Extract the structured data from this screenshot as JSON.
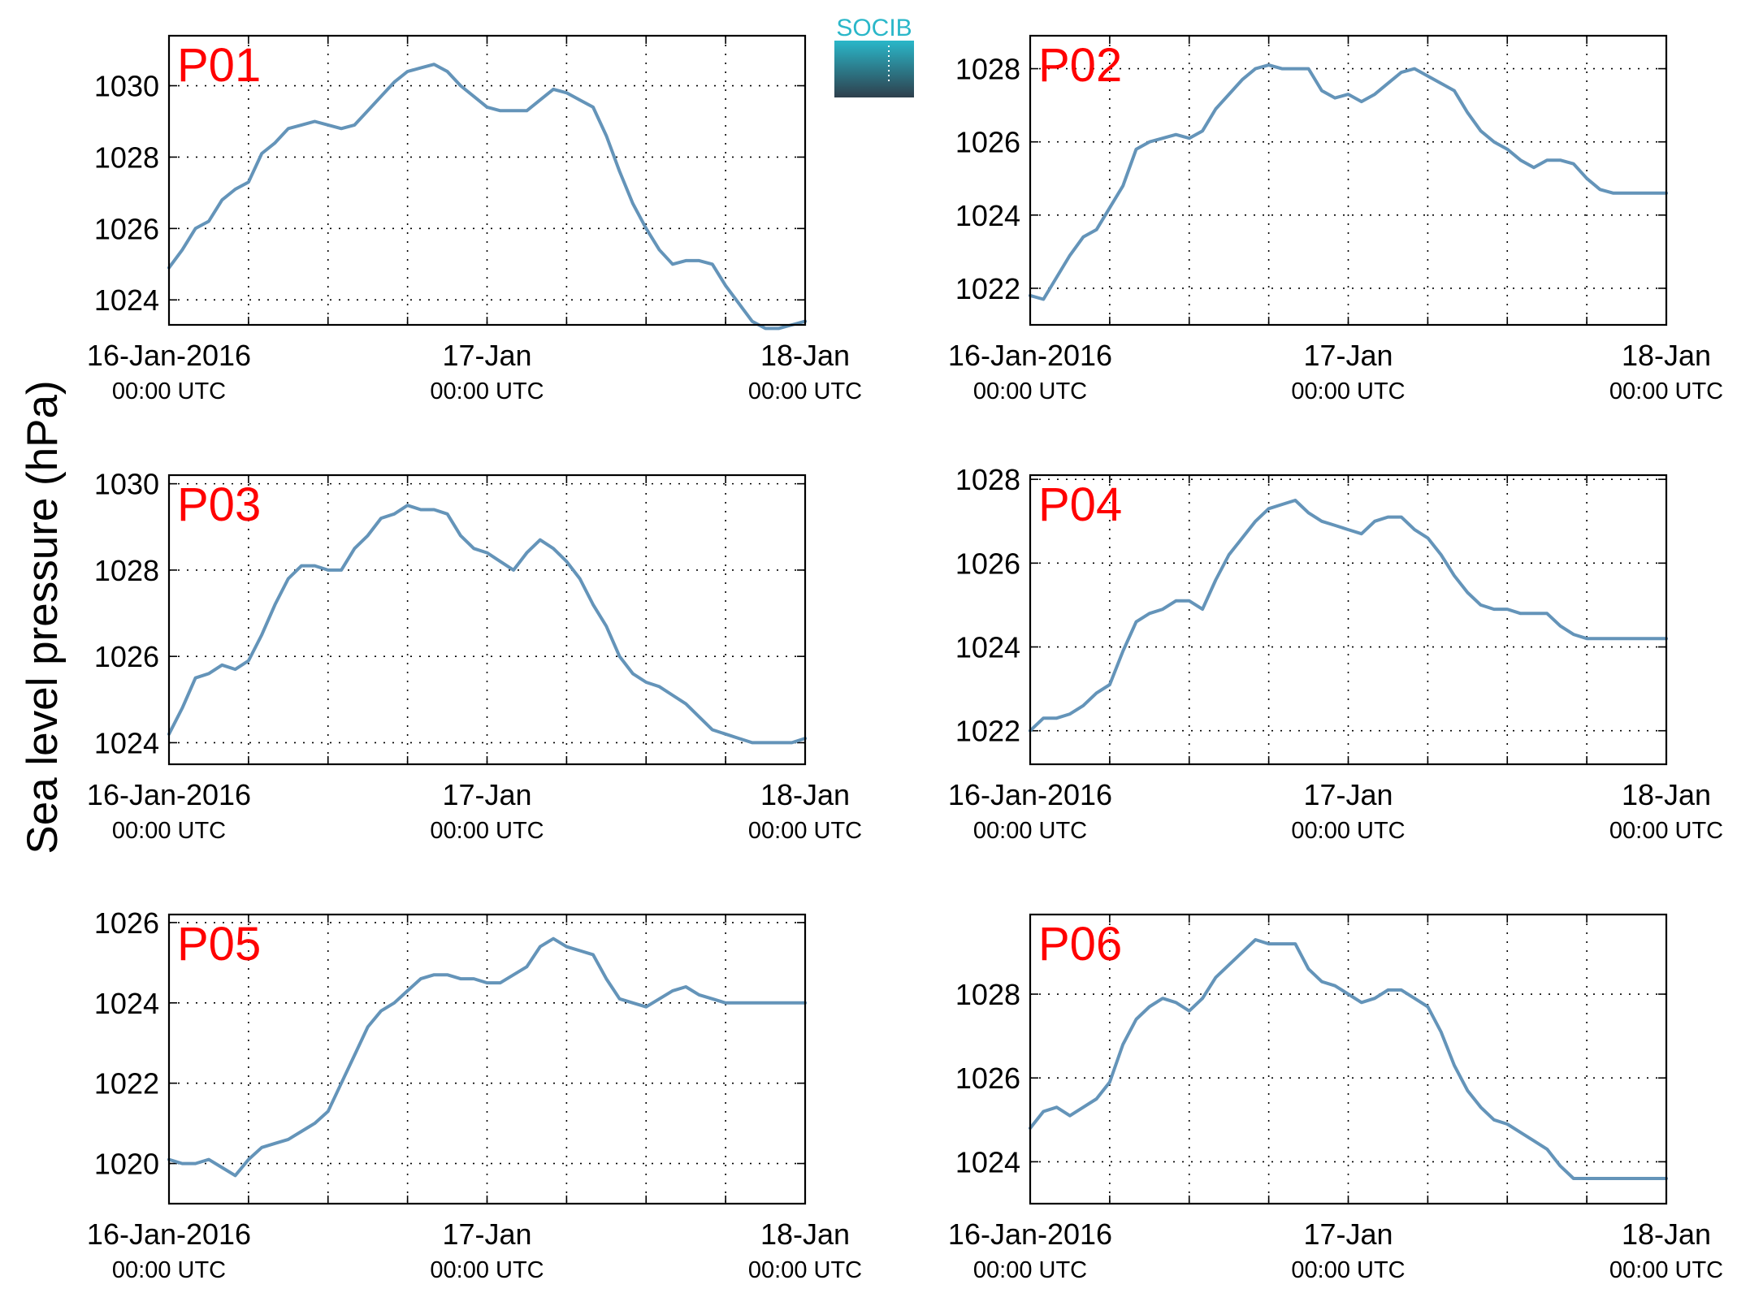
{
  "ylabel": "Sea level pressure (hPa)",
  "logo": {
    "text": "SOCIB",
    "color_top": "#2ab7c9",
    "color_bottom": "#2e3f4c"
  },
  "colors": {
    "series": "#6494b9",
    "title": "#ff0000"
  },
  "chart_data": [
    {
      "type": "line",
      "title": "P01",
      "xlabels": [
        {
          "main": "16-Jan-2016",
          "sub": "00:00 UTC"
        },
        {
          "main": "17-Jan",
          "sub": "00:00 UTC"
        },
        {
          "main": "18-Jan",
          "sub": "00:00 UTC"
        }
      ],
      "xlim": [
        0,
        48
      ],
      "ylim": [
        1023.3,
        1031.4
      ],
      "yticks": [
        1024,
        1026,
        1028,
        1030
      ],
      "grid": true,
      "series": [
        {
          "x": [
            0,
            1,
            2,
            3,
            4,
            5,
            6,
            7,
            8,
            9,
            10,
            11,
            12,
            13,
            14,
            15,
            16,
            17,
            18,
            19,
            20,
            21,
            22,
            23,
            24,
            25,
            26,
            27,
            28,
            29,
            30,
            31,
            32,
            33,
            34,
            35,
            36,
            37,
            38,
            39,
            40,
            41,
            42,
            43,
            44,
            45,
            46,
            47,
            48
          ],
          "y": [
            1024.9,
            1025.4,
            1026.0,
            1026.2,
            1026.8,
            1027.1,
            1027.3,
            1028.1,
            1028.4,
            1028.8,
            1028.9,
            1029.0,
            1028.9,
            1028.8,
            1028.9,
            1029.3,
            1029.7,
            1030.1,
            1030.4,
            1030.5,
            1030.6,
            1030.4,
            1030.0,
            1029.7,
            1029.4,
            1029.3,
            1029.3,
            1029.3,
            1029.6,
            1029.9,
            1029.8,
            1029.6,
            1029.4,
            1028.6,
            1027.6,
            1026.7,
            1026.0,
            1025.4,
            1025.0,
            1025.1,
            1025.1,
            1025.0,
            1024.4,
            1023.9,
            1023.4,
            1023.2,
            1023.2,
            1023.3,
            1023.4
          ]
        }
      ]
    },
    {
      "type": "line",
      "title": "P02",
      "xlabels": [
        {
          "main": "16-Jan-2016",
          "sub": "00:00 UTC"
        },
        {
          "main": "17-Jan",
          "sub": "00:00 UTC"
        },
        {
          "main": "18-Jan",
          "sub": "00:00 UTC"
        }
      ],
      "xlim": [
        0,
        48
      ],
      "ylim": [
        1021.0,
        1028.9
      ],
      "yticks": [
        1022,
        1024,
        1026,
        1028
      ],
      "grid": true,
      "series": [
        {
          "x": [
            0,
            1,
            2,
            3,
            4,
            5,
            6,
            7,
            8,
            9,
            10,
            11,
            12,
            13,
            14,
            15,
            16,
            17,
            18,
            19,
            20,
            21,
            22,
            23,
            24,
            25,
            26,
            27,
            28,
            29,
            30,
            31,
            32,
            33,
            34,
            35,
            36,
            37,
            38,
            39,
            40,
            41,
            42,
            43,
            44,
            45,
            46,
            47,
            48
          ],
          "y": [
            1021.8,
            1021.7,
            1022.3,
            1022.9,
            1023.4,
            1023.6,
            1024.2,
            1024.8,
            1025.8,
            1026.0,
            1026.1,
            1026.2,
            1026.1,
            1026.3,
            1026.9,
            1027.3,
            1027.7,
            1028.0,
            1028.1,
            1028.0,
            1028.0,
            1028.0,
            1027.4,
            1027.2,
            1027.3,
            1027.1,
            1027.3,
            1027.6,
            1027.9,
            1028.0,
            1027.8,
            1027.6,
            1027.4,
            1026.8,
            1026.3,
            1026.0,
            1025.8,
            1025.5,
            1025.3,
            1025.5,
            1025.5,
            1025.4,
            1025.0,
            1024.7,
            1024.6,
            1024.6,
            1024.6,
            1024.6,
            1024.6
          ]
        }
      ]
    },
    {
      "type": "line",
      "title": "P03",
      "xlabels": [
        {
          "main": "16-Jan-2016",
          "sub": "00:00 UTC"
        },
        {
          "main": "17-Jan",
          "sub": "00:00 UTC"
        },
        {
          "main": "18-Jan",
          "sub": "00:00 UTC"
        }
      ],
      "xlim": [
        0,
        48
      ],
      "ylim": [
        1023.5,
        1030.2
      ],
      "yticks": [
        1024,
        1026,
        1028,
        1030
      ],
      "grid": true,
      "series": [
        {
          "x": [
            0,
            1,
            2,
            3,
            4,
            5,
            6,
            7,
            8,
            9,
            10,
            11,
            12,
            13,
            14,
            15,
            16,
            17,
            18,
            19,
            20,
            21,
            22,
            23,
            24,
            25,
            26,
            27,
            28,
            29,
            30,
            31,
            32,
            33,
            34,
            35,
            36,
            37,
            38,
            39,
            40,
            41,
            42,
            43,
            44,
            45,
            46,
            47,
            48
          ],
          "y": [
            1024.2,
            1024.8,
            1025.5,
            1025.6,
            1025.8,
            1025.7,
            1025.9,
            1026.5,
            1027.2,
            1027.8,
            1028.1,
            1028.1,
            1028.0,
            1028.0,
            1028.5,
            1028.8,
            1029.2,
            1029.3,
            1029.5,
            1029.4,
            1029.4,
            1029.3,
            1028.8,
            1028.5,
            1028.4,
            1028.2,
            1028.0,
            1028.4,
            1028.7,
            1028.5,
            1028.2,
            1027.8,
            1027.2,
            1026.7,
            1026.0,
            1025.6,
            1025.4,
            1025.3,
            1025.1,
            1024.9,
            1024.6,
            1024.3,
            1024.2,
            1024.1,
            1024.0,
            1024.0,
            1024.0,
            1024.0,
            1024.1
          ]
        }
      ]
    },
    {
      "type": "line",
      "title": "P04",
      "xlabels": [
        {
          "main": "16-Jan-2016",
          "sub": "00:00 UTC"
        },
        {
          "main": "17-Jan",
          "sub": "00:00 UTC"
        },
        {
          "main": "18-Jan",
          "sub": "00:00 UTC"
        }
      ],
      "xlim": [
        0,
        48
      ],
      "ylim": [
        1021.2,
        1028.1
      ],
      "yticks": [
        1022,
        1024,
        1026,
        1028
      ],
      "grid": true,
      "series": [
        {
          "x": [
            0,
            1,
            2,
            3,
            4,
            5,
            6,
            7,
            8,
            9,
            10,
            11,
            12,
            13,
            14,
            15,
            16,
            17,
            18,
            19,
            20,
            21,
            22,
            23,
            24,
            25,
            26,
            27,
            28,
            29,
            30,
            31,
            32,
            33,
            34,
            35,
            36,
            37,
            38,
            39,
            40,
            41,
            42,
            43,
            44,
            45,
            46,
            47,
            48
          ],
          "y": [
            1022.0,
            1022.3,
            1022.3,
            1022.4,
            1022.6,
            1022.9,
            1023.1,
            1023.9,
            1024.6,
            1024.8,
            1024.9,
            1025.1,
            1025.1,
            1024.9,
            1025.6,
            1026.2,
            1026.6,
            1027.0,
            1027.3,
            1027.4,
            1027.5,
            1027.2,
            1027.0,
            1026.9,
            1026.8,
            1026.7,
            1027.0,
            1027.1,
            1027.1,
            1026.8,
            1026.6,
            1026.2,
            1025.7,
            1025.3,
            1025.0,
            1024.9,
            1024.9,
            1024.8,
            1024.8,
            1024.8,
            1024.5,
            1024.3,
            1024.2,
            1024.2,
            1024.2,
            1024.2,
            1024.2,
            1024.2,
            1024.2
          ]
        }
      ]
    },
    {
      "type": "line",
      "title": "P05",
      "xlabels": [
        {
          "main": "16-Jan-2016",
          "sub": "00:00 UTC"
        },
        {
          "main": "17-Jan",
          "sub": "00:00 UTC"
        },
        {
          "main": "18-Jan",
          "sub": "00:00 UTC"
        }
      ],
      "xlim": [
        0,
        48
      ],
      "ylim": [
        1019.0,
        1026.2
      ],
      "yticks": [
        1020,
        1022,
        1024,
        1026
      ],
      "grid": true,
      "series": [
        {
          "x": [
            0,
            1,
            2,
            3,
            4,
            5,
            6,
            7,
            8,
            9,
            10,
            11,
            12,
            13,
            14,
            15,
            16,
            17,
            18,
            19,
            20,
            21,
            22,
            23,
            24,
            25,
            26,
            27,
            28,
            29,
            30,
            31,
            32,
            33,
            34,
            35,
            36,
            37,
            38,
            39,
            40,
            41,
            42,
            43,
            44,
            45,
            46,
            47,
            48
          ],
          "y": [
            1020.1,
            1020.0,
            1020.0,
            1020.1,
            1019.9,
            1019.7,
            1020.1,
            1020.4,
            1020.5,
            1020.6,
            1020.8,
            1021.0,
            1021.3,
            1022.0,
            1022.7,
            1023.4,
            1023.8,
            1024.0,
            1024.3,
            1024.6,
            1024.7,
            1024.7,
            1024.6,
            1024.6,
            1024.5,
            1024.5,
            1024.7,
            1024.9,
            1025.4,
            1025.6,
            1025.4,
            1025.3,
            1025.2,
            1024.6,
            1024.1,
            1024.0,
            1023.9,
            1024.1,
            1024.3,
            1024.4,
            1024.2,
            1024.1,
            1024.0,
            1024.0,
            1024.0,
            1024.0,
            1024.0,
            1024.0,
            1024.0
          ]
        }
      ]
    },
    {
      "type": "line",
      "title": "P06",
      "xlabels": [
        {
          "main": "16-Jan-2016",
          "sub": "00:00 UTC"
        },
        {
          "main": "17-Jan",
          "sub": "00:00 UTC"
        },
        {
          "main": "18-Jan",
          "sub": "00:00 UTC"
        }
      ],
      "xlim": [
        0,
        48
      ],
      "ylim": [
        1023.0,
        1029.9
      ],
      "yticks": [
        1024,
        1026,
        1028
      ],
      "grid": true,
      "series": [
        {
          "x": [
            0,
            1,
            2,
            3,
            4,
            5,
            6,
            7,
            8,
            9,
            10,
            11,
            12,
            13,
            14,
            15,
            16,
            17,
            18,
            19,
            20,
            21,
            22,
            23,
            24,
            25,
            26,
            27,
            28,
            29,
            30,
            31,
            32,
            33,
            34,
            35,
            36,
            37,
            38,
            39,
            40,
            41,
            42,
            43,
            44,
            45,
            46,
            47,
            48
          ],
          "y": [
            1024.8,
            1025.2,
            1025.3,
            1025.1,
            1025.3,
            1025.5,
            1025.9,
            1026.8,
            1027.4,
            1027.7,
            1027.9,
            1027.8,
            1027.6,
            1027.9,
            1028.4,
            1028.7,
            1029.0,
            1029.3,
            1029.2,
            1029.2,
            1029.2,
            1028.6,
            1028.3,
            1028.2,
            1028.0,
            1027.8,
            1027.9,
            1028.1,
            1028.1,
            1027.9,
            1027.7,
            1027.1,
            1026.3,
            1025.7,
            1025.3,
            1025.0,
            1024.9,
            1024.7,
            1024.5,
            1024.3,
            1023.9,
            1023.6,
            1023.6,
            1023.6,
            1023.6,
            1023.6,
            1023.6,
            1023.6,
            1023.6
          ]
        }
      ]
    }
  ]
}
